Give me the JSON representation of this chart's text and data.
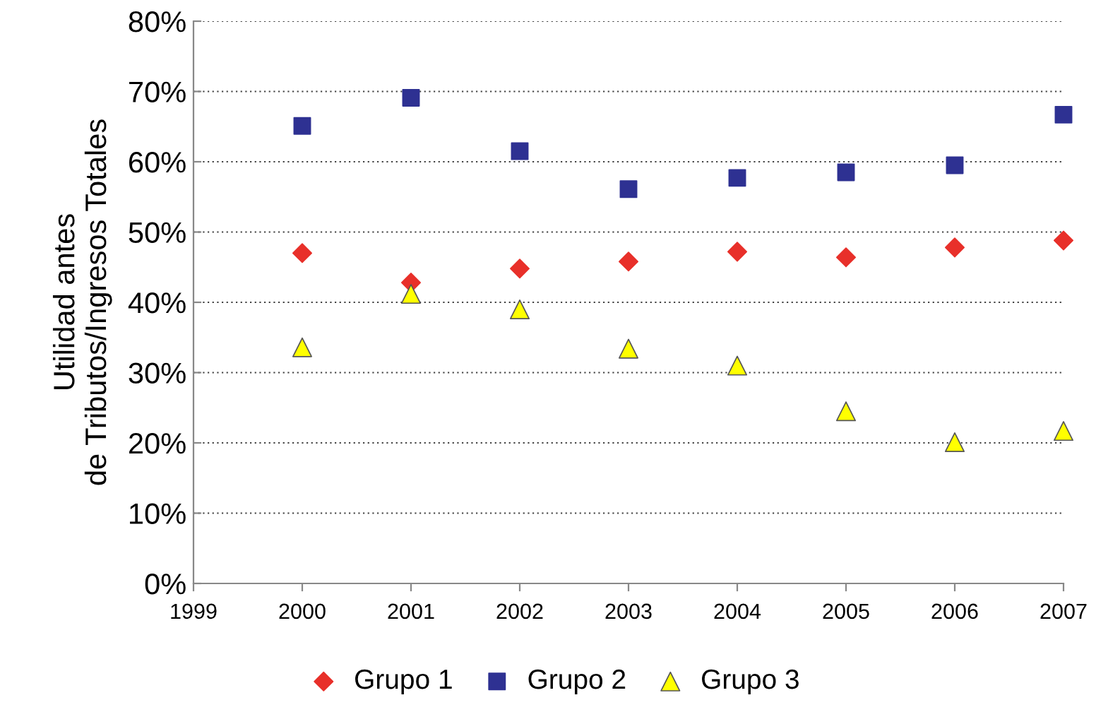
{
  "chart_data": {
    "type": "scatter",
    "ylabel": "Utilidad antes\nde Tributos/Ingresos Totales",
    "x": [
      2000,
      2001,
      2002,
      2003,
      2004,
      2005,
      2006,
      2007
    ],
    "series": [
      {
        "name": "Grupo 1",
        "color": "#e8302a",
        "marker": "diamond",
        "values": [
          47.0,
          42.8,
          44.8,
          45.8,
          47.2,
          46.4,
          47.8,
          48.8
        ]
      },
      {
        "name": "Grupo 2",
        "color": "#2e3192",
        "marker": "square",
        "values": [
          65.1,
          69.1,
          61.5,
          56.1,
          57.7,
          58.5,
          59.5,
          66.7
        ]
      },
      {
        "name": "Grupo 3",
        "color": "#ffff00",
        "marker": "triangle",
        "values": [
          33.6,
          41.2,
          39.0,
          33.4,
          31.0,
          24.5,
          20.1,
          21.7
        ]
      }
    ],
    "xlim": [
      1999,
      2007
    ],
    "xticks": [
      1999,
      2000,
      2001,
      2002,
      2003,
      2004,
      2005,
      2006,
      2007
    ],
    "ylim": [
      0,
      80
    ],
    "yticks": [
      {
        "value": 0,
        "label": "0%"
      },
      {
        "value": 10,
        "label": "10%"
      },
      {
        "value": 20,
        "label": "20%"
      },
      {
        "value": 30,
        "label": "30%"
      },
      {
        "value": 40,
        "label": "40%"
      },
      {
        "value": 50,
        "label": "50%"
      },
      {
        "value": 60,
        "label": "60%"
      },
      {
        "value": 70,
        "label": "70%"
      },
      {
        "value": 80,
        "label": "80%"
      }
    ],
    "grid": "y",
    "legend": "bottom"
  }
}
